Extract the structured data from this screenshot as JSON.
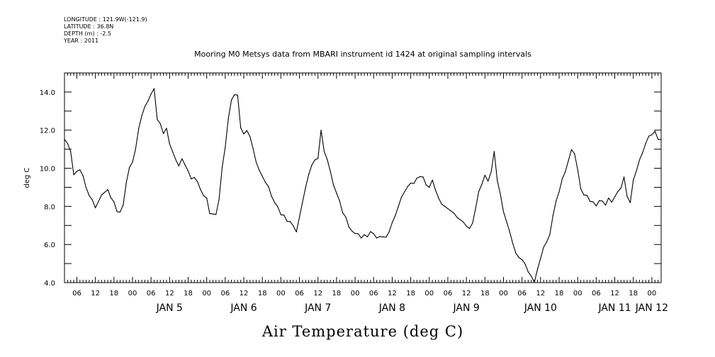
{
  "header_meta": {
    "longitude": "LONGITUDE : 121.9W(-121.9)",
    "latitude": "LATITUDE : 36.8N",
    "depth": "DEPTH (m) : -2.5",
    "year": "YEAR : 2011"
  },
  "chart_data": {
    "type": "line",
    "title": "Mooring M0 Metsys data from MBARI instrument id 1424 at original sampling intervals",
    "xlabel": "Air Temperature (deg C)",
    "ylabel": "deg C",
    "ylim": [
      4.0,
      15.0
    ],
    "xlim": [
      "JAN 4 2011 02:00",
      "JAN 12 2011 03:00"
    ],
    "y_ticks": [
      "4.0",
      "6.0",
      "8.0",
      "10.0",
      "12.0",
      "14.0"
    ],
    "x_hour_ticks": [
      "06",
      "12",
      "18",
      "00",
      "06",
      "12",
      "18",
      "00",
      "06",
      "12",
      "18",
      "00",
      "06",
      "12",
      "18",
      "00",
      "06",
      "12",
      "18",
      "00",
      "06",
      "12",
      "18",
      "00",
      "06",
      "12",
      "18",
      "00",
      "06",
      "12",
      "18",
      "00"
    ],
    "x_day_labels": [
      "JAN 5",
      "JAN 6",
      "JAN 7",
      "JAN 8",
      "JAN 9",
      "JAN 10",
      "JAN 11",
      "JAN 12"
    ],
    "grid": false,
    "series": [
      {
        "color": "#000000",
        "x": [
          "JAN 4 02:00",
          "JAN 4 03:00",
          "JAN 4 04:00",
          "JAN 4 05:00",
          "JAN 4 06:00",
          "JAN 4 07:00",
          "JAN 4 08:00",
          "JAN 4 09:00",
          "JAN 4 10:00",
          "JAN 4 11:00",
          "JAN 4 12:00",
          "JAN 4 14:00",
          "JAN 4 16:00",
          "JAN 4 17:00",
          "JAN 4 18:00",
          "JAN 4 19:00",
          "JAN 4 20:00",
          "JAN 4 21:00",
          "JAN 4 22:00",
          "JAN 4 23:00",
          "JAN 5 00:00",
          "JAN 5 01:00",
          "JAN 5 02:00",
          "JAN 5 03:00",
          "JAN 5 04:00",
          "JAN 5 05:00",
          "JAN 5 06:00",
          "JAN 5 07:00",
          "JAN 5 08:00",
          "JAN 5 09:00",
          "JAN 5 10:00",
          "JAN 5 11:00",
          "JAN 5 12:00",
          "JAN 5 13:00",
          "JAN 5 14:00",
          "JAN 5 15:00",
          "JAN 5 16:00",
          "JAN 5 17:00",
          "JAN 5 18:00",
          "JAN 5 19:00",
          "JAN 5 20:00",
          "JAN 5 21:00",
          "JAN 5 22:00",
          "JAN 5 23:00",
          "JAN 6 00:00",
          "JAN 6 01:00",
          "JAN 6 02:00",
          "JAN 6 03:00",
          "JAN 6 04:00",
          "JAN 6 05:00",
          "JAN 6 06:00",
          "JAN 6 07:00",
          "JAN 6 08:00",
          "JAN 6 09:00",
          "JAN 6 10:00",
          "JAN 6 11:00",
          "JAN 6 12:00",
          "JAN 6 13:00",
          "JAN 6 14:00",
          "JAN 6 15:00",
          "JAN 6 16:00",
          "JAN 6 17:00",
          "JAN 6 18:00",
          "JAN 6 19:00",
          "JAN 6 20:00",
          "JAN 6 21:00",
          "JAN 6 22:00",
          "JAN 6 23:00",
          "JAN 7 00:00",
          "JAN 7 01:00",
          "JAN 7 02:00",
          "JAN 7 03:00",
          "JAN 7 04:00",
          "JAN 7 05:00",
          "JAN 7 06:00",
          "JAN 7 07:00",
          "JAN 7 08:00",
          "JAN 7 09:00",
          "JAN 7 10:00",
          "JAN 7 11:00",
          "JAN 7 12:00",
          "JAN 7 13:00",
          "JAN 7 14:00",
          "JAN 7 15:00",
          "JAN 7 16:00",
          "JAN 7 17:00",
          "JAN 7 18:00",
          "JAN 7 19:00",
          "JAN 7 20:00",
          "JAN 7 21:00",
          "JAN 7 22:00",
          "JAN 7 23:00",
          "JAN 8 00:00",
          "JAN 8 01:00",
          "JAN 8 02:00",
          "JAN 8 03:00",
          "JAN 8 04:00",
          "JAN 8 05:00",
          "JAN 8 06:00",
          "JAN 8 07:00",
          "JAN 8 08:00",
          "JAN 8 09:00",
          "JAN 8 10:00",
          "JAN 8 11:00",
          "JAN 8 12:00",
          "JAN 8 13:00",
          "JAN 8 14:00",
          "JAN 8 15:00",
          "JAN 8 16:00",
          "JAN 8 17:00",
          "JAN 8 18:00",
          "JAN 8 19:00",
          "JAN 8 20:00",
          "JAN 8 21:00",
          "JAN 8 22:00",
          "JAN 8 23:00",
          "JAN 9 00:00",
          "JAN 9 01:00",
          "JAN 9 02:00",
          "JAN 9 03:00",
          "JAN 9 04:00",
          "JAN 9 05:00",
          "JAN 9 06:00",
          "JAN 9 07:00",
          "JAN 9 08:00",
          "JAN 9 09:00",
          "JAN 9 10:00",
          "JAN 9 11:00",
          "JAN 9 12:00",
          "JAN 9 13:00",
          "JAN 9 14:00",
          "JAN 9 15:00",
          "JAN 9 16:00",
          "JAN 9 17:00",
          "JAN 9 18:00",
          "JAN 9 19:00",
          "JAN 9 20:00",
          "JAN 9 21:00",
          "JAN 9 22:00",
          "JAN 9 23:00",
          "JAN 10 00:00",
          "JAN 10 01:00",
          "JAN 10 02:00",
          "JAN 10 03:00",
          "JAN 10 04:00",
          "JAN 10 05:00",
          "JAN 10 06:00",
          "JAN 10 07:00",
          "JAN 10 08:00",
          "JAN 10 09:00",
          "JAN 10 10:00",
          "JAN 10 11:00",
          "JAN 10 12:00",
          "JAN 10 13:00",
          "JAN 10 14:00",
          "JAN 10 15:00",
          "JAN 10 16:00",
          "JAN 10 17:00",
          "JAN 10 18:00",
          "JAN 10 19:00",
          "JAN 10 20:00",
          "JAN 10 21:00",
          "JAN 10 22:00",
          "JAN 10 23:00",
          "JAN 11 00:00",
          "JAN 11 01:00",
          "JAN 11 02:00",
          "JAN 11 03:00",
          "JAN 11 04:00",
          "JAN 11 05:00",
          "JAN 11 06:00",
          "JAN 11 07:00",
          "JAN 11 08:00",
          "JAN 11 09:00",
          "JAN 11 10:00",
          "JAN 11 11:00",
          "JAN 11 12:00",
          "JAN 11 13:00",
          "JAN 11 14:00",
          "JAN 11 15:00",
          "JAN 11 16:00",
          "JAN 11 17:00",
          "JAN 11 18:00",
          "JAN 11 19:00",
          "JAN 11 20:00",
          "JAN 11 21:00",
          "JAN 11 22:00",
          "JAN 11 23:00",
          "JAN 12 00:00",
          "JAN 12 01:00",
          "JAN 12 02:00",
          "JAN 12 03:00"
        ],
        "values": [
          11.6,
          11.3,
          10.8,
          9.7,
          9.8,
          10.0,
          9.6,
          8.9,
          8.6,
          8.3,
          8.0,
          8.6,
          8.8,
          8.5,
          8.2,
          7.8,
          7.7,
          8.0,
          9.3,
          10.0,
          10.4,
          11.0,
          12.0,
          12.8,
          13.2,
          13.6,
          13.9,
          14.1,
          12.6,
          12.3,
          11.9,
          12.1,
          11.2,
          10.9,
          10.4,
          10.2,
          10.5,
          10.1,
          9.9,
          9.4,
          9.6,
          9.3,
          8.8,
          8.6,
          8.4,
          7.7,
          7.6,
          7.5,
          8.4,
          10.0,
          11.2,
          12.6,
          13.5,
          13.9,
          13.8,
          12.2,
          11.8,
          11.9,
          11.7,
          11.0,
          10.4,
          9.9,
          9.5,
          9.3,
          9.0,
          8.6,
          8.2,
          7.9,
          7.6,
          7.5,
          7.3,
          7.2,
          6.9,
          6.7,
          7.4,
          8.3,
          9.0,
          9.6,
          10.2,
          10.4,
          10.6,
          12.0,
          10.8,
          10.5,
          9.8,
          9.2,
          8.7,
          8.2,
          7.7,
          7.4,
          7.0,
          6.7,
          6.5,
          6.6,
          6.3,
          6.6,
          6.4,
          6.6,
          6.6,
          6.3,
          6.5,
          6.4,
          6.3,
          6.7,
          7.1,
          7.6,
          8.0,
          8.4,
          8.8,
          9.0,
          9.3,
          9.2,
          9.4,
          9.6,
          9.5,
          9.2,
          9.0,
          9.3,
          8.9,
          8.4,
          8.2,
          8.0,
          7.8,
          7.8,
          7.6,
          7.5,
          7.3,
          7.1,
          7.0,
          6.8,
          7.2,
          7.9,
          8.7,
          9.2,
          9.6,
          9.4,
          9.8,
          10.8,
          9.4,
          8.6,
          7.8,
          7.2,
          6.6,
          6.1,
          5.5,
          5.4,
          5.2,
          4.9,
          4.6,
          4.3,
          4.1,
          4.7,
          5.2,
          5.9,
          6.1,
          6.6,
          7.5,
          8.2,
          8.8,
          9.4,
          9.9,
          10.4,
          10.9,
          10.8,
          9.9,
          9.0,
          8.6,
          8.5,
          8.3,
          8.2,
          8.1,
          8.3,
          8.2,
          8.1,
          8.4,
          8.3,
          8.5,
          8.7,
          9.0,
          9.5,
          8.6,
          8.2,
          9.3,
          9.9,
          10.4,
          10.9,
          11.3,
          11.6,
          11.8,
          11.9,
          11.6,
          11.5
        ]
      }
    ]
  }
}
